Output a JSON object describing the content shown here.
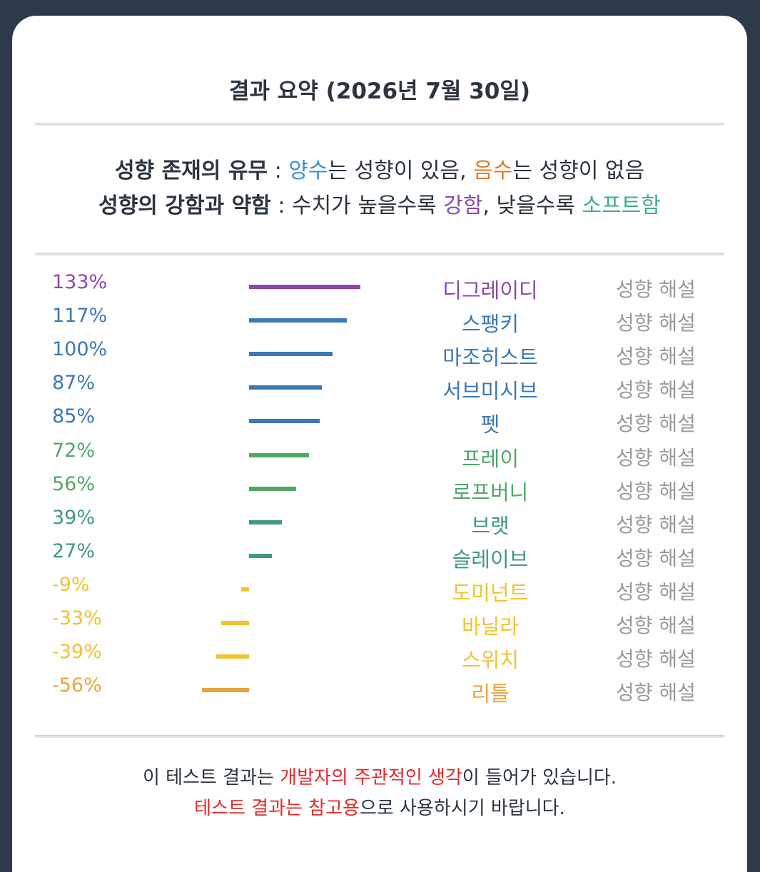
{
  "header": {
    "title": "결과 요약 (2026년 7월 30일)"
  },
  "legend": {
    "line1": {
      "bold": "성향 존재의 유무",
      "sep": " : ",
      "positive": "양수",
      "text1": "는 성향이 있음, ",
      "negative": "음수",
      "text2": "는 성향이 없음"
    },
    "line2": {
      "bold": "성향의 강함과 약함",
      "sep": " : ",
      "text1": "수치가 높을수록 ",
      "strong": "강함",
      "text2": ", 낮을수록 ",
      "soft": "소프트함"
    },
    "colors": {
      "positive": "#3a8fd0",
      "negative": "#e07a2a",
      "strong": "#8a48ad",
      "soft": "#3fae87"
    }
  },
  "chart_data": {
    "type": "bar",
    "orientation": "horizontal",
    "categories": [
      "디그레이디",
      "스팽키",
      "마조히스트",
      "서브미시브",
      "펫",
      "프레이",
      "로프버니",
      "브랫",
      "슬레이브",
      "도미넌트",
      "바닐라",
      "스위치",
      "리틀"
    ],
    "values": [
      133,
      117,
      100,
      87,
      85,
      72,
      56,
      39,
      27,
      -9,
      -33,
      -39,
      -56
    ],
    "value_labels": [
      "133%",
      "117%",
      "100%",
      "87%",
      "85%",
      "72%",
      "56%",
      "39%",
      "27%",
      "-9%",
      "-33%",
      "-39%",
      "-56%"
    ],
    "colors": [
      "#8a48ad",
      "#3b78b5",
      "#3b78b5",
      "#3b78b5",
      "#3b78b5",
      "#4fa866",
      "#4fa866",
      "#3f9a7c",
      "#3f9a7c",
      "#f1c232",
      "#f1c232",
      "#f1c232",
      "#e6a53a"
    ]
  },
  "rows": {
    "detail_label": "성향 해설"
  },
  "footer": {
    "line1": {
      "text1": "이 테스트 결과는 ",
      "highlight": "개발자의 주관적인 생각",
      "text2": "이 들어가 있습니다."
    },
    "line2": {
      "highlight": "테스트 결과는 참고용",
      "text1": "으로 사용하시기 바랍니다."
    }
  }
}
